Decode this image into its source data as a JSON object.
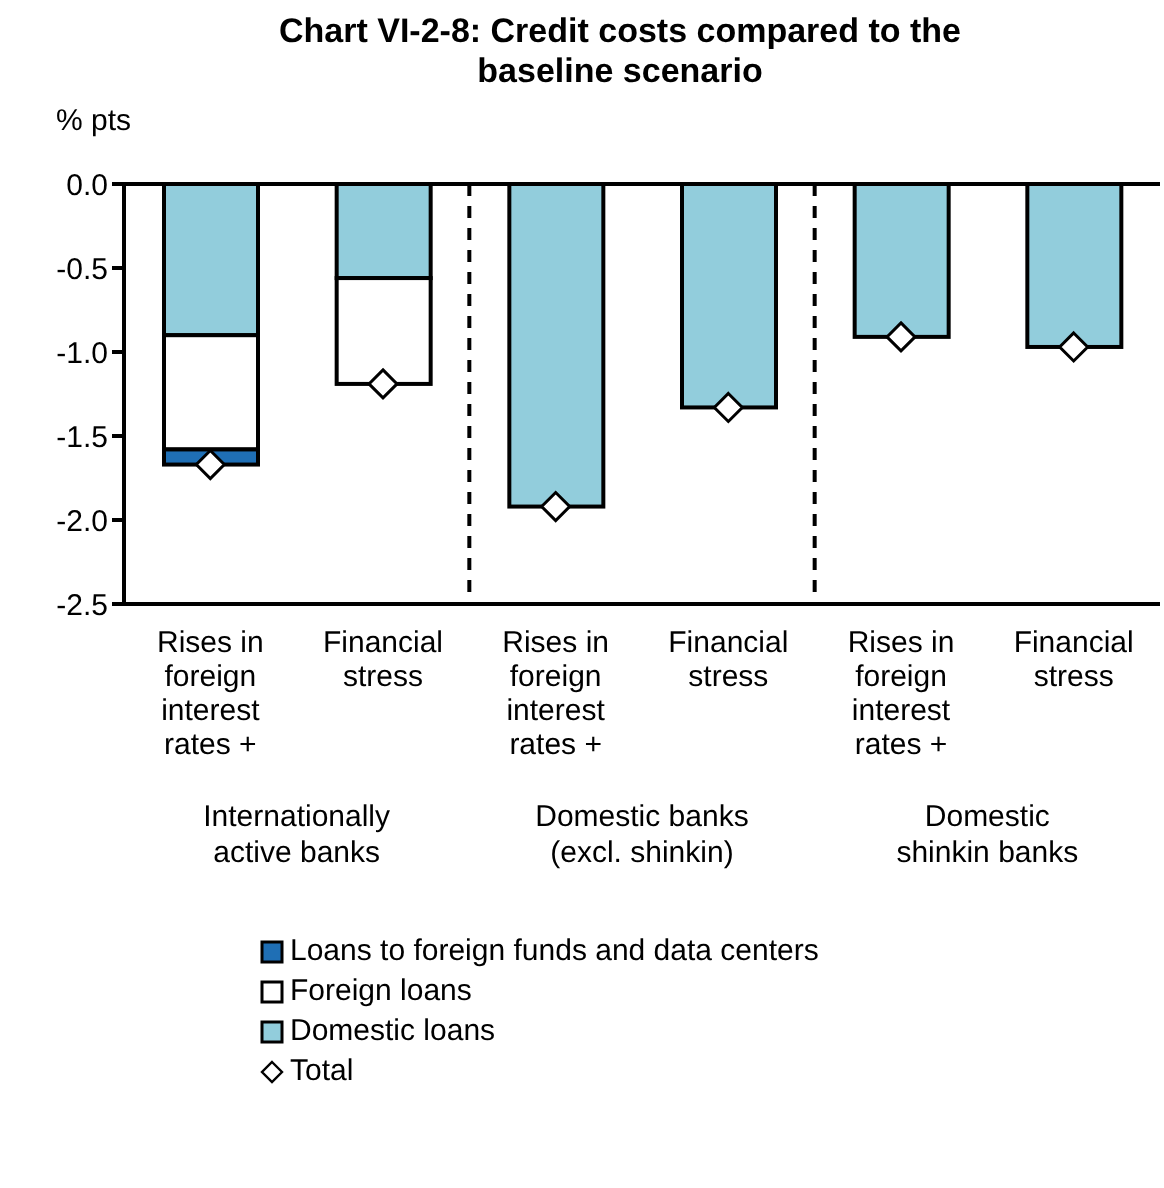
{
  "chart_data": {
    "type": "bar",
    "title": "Chart VI-2-8: Credit costs compared to the baseline scenario",
    "ylabel": "% pts",
    "categories": [
      "Rises in foreign interest rates +",
      "Financial stress",
      "Rises in foreign interest rates +",
      "Financial stress",
      "Rises in foreign interest rates +",
      "Financial stress"
    ],
    "stacked": true,
    "series": [
      {
        "name": "Domestic loans",
        "color": "#92cddc",
        "values": [
          -0.9,
          -0.56,
          -1.92,
          -1.33,
          -0.91,
          -0.97
        ]
      },
      {
        "name": "Foreign loans",
        "color": "#ffffff",
        "values": [
          -0.68,
          -0.63,
          0,
          0,
          0,
          0
        ]
      },
      {
        "name": "Loans to foreign funds and data centers",
        "color": "#1f6fb5",
        "values": [
          -0.09,
          0,
          0,
          0,
          0,
          0
        ]
      },
      {
        "name": "Total",
        "type": "scatter",
        "marker": "diamond",
        "color": "#ffffff",
        "values": [
          -1.67,
          -1.19,
          -1.92,
          -1.33,
          -0.91,
          -0.97
        ]
      }
    ],
    "ylim": [
      -2.5,
      0
    ],
    "yticks": [
      {
        "value": -2.5,
        "label": "-2.5"
      },
      {
        "value": -2,
        "label": "-2.0"
      },
      {
        "value": -1.5,
        "label": "-1.5"
      },
      {
        "value": -1,
        "label": "-1.0"
      },
      {
        "value": -0.5,
        "label": "-0.5"
      },
      {
        "value": 0,
        "label": "0.0"
      }
    ],
    "annotations": [
      "Internationally active banks",
      "Domestic banks (excl. shinkin)",
      "Domestic shinkin banks"
    ],
    "grid": false,
    "legend": "bottom"
  }
}
